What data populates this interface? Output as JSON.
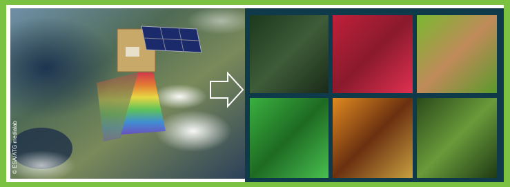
{
  "credit": "© ESA/ATG medialab"
}
